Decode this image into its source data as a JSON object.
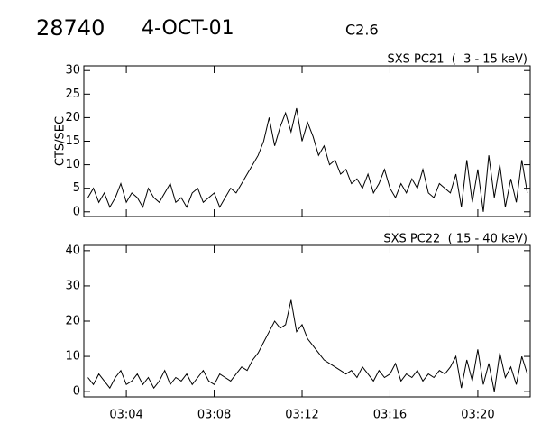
{
  "header": {
    "id": "28740",
    "date": "4-OCT-01",
    "class": "C2.6"
  },
  "chart_data": [
    {
      "type": "line",
      "title": "SXS PC21  (  3 - 15 keV)",
      "y_label": "CTS/SEC",
      "color": "#000000",
      "xlim": [
        "03:02:04",
        "03:22:23"
      ],
      "xticks": [
        "03:04",
        "03:08",
        "03:12",
        "03:16",
        "03:20"
      ],
      "ylim": [
        -1,
        31
      ],
      "yticks": [
        0,
        5,
        10,
        15,
        20,
        25,
        30
      ],
      "x": [
        "03:02:15",
        "03:02:30",
        "03:02:45",
        "03:03:00",
        "03:03:15",
        "03:03:30",
        "03:03:45",
        "03:04:00",
        "03:04:15",
        "03:04:30",
        "03:04:45",
        "03:05:00",
        "03:05:15",
        "03:05:30",
        "03:05:45",
        "03:06:00",
        "03:06:15",
        "03:06:30",
        "03:06:45",
        "03:07:00",
        "03:07:15",
        "03:07:30",
        "03:07:45",
        "03:08:00",
        "03:08:15",
        "03:08:30",
        "03:08:45",
        "03:09:00",
        "03:09:15",
        "03:09:30",
        "03:09:45",
        "03:10:00",
        "03:10:15",
        "03:10:30",
        "03:10:45",
        "03:11:00",
        "03:11:15",
        "03:11:30",
        "03:11:45",
        "03:12:00",
        "03:12:15",
        "03:12:30",
        "03:12:45",
        "03:13:00",
        "03:13:15",
        "03:13:30",
        "03:13:45",
        "03:14:00",
        "03:14:15",
        "03:14:30",
        "03:14:45",
        "03:15:00",
        "03:15:15",
        "03:15:30",
        "03:15:45",
        "03:16:00",
        "03:16:15",
        "03:16:30",
        "03:16:45",
        "03:17:00",
        "03:17:15",
        "03:17:30",
        "03:17:45",
        "03:18:00",
        "03:18:15",
        "03:18:30",
        "03:18:45",
        "03:19:00",
        "03:19:15",
        "03:19:30",
        "03:19:45",
        "03:20:00",
        "03:20:15",
        "03:20:30",
        "03:20:45",
        "03:21:00",
        "03:21:15",
        "03:21:30",
        "03:21:45",
        "03:22:00",
        "03:22:15"
      ],
      "values": [
        3,
        5,
        2,
        4,
        1,
        3,
        6,
        2,
        4,
        3,
        1,
        5,
        3,
        2,
        4,
        6,
        2,
        3,
        1,
        4,
        5,
        2,
        3,
        4,
        1,
        3,
        5,
        4,
        6,
        8,
        10,
        12,
        15,
        20,
        14,
        18,
        21,
        17,
        22,
        15,
        19,
        16,
        12,
        14,
        10,
        11,
        8,
        9,
        6,
        7,
        5,
        8,
        4,
        6,
        9,
        5,
        3,
        6,
        4,
        7,
        5,
        9,
        4,
        3,
        6,
        5,
        4,
        8,
        1,
        11,
        2,
        9,
        0,
        12,
        3,
        10,
        1,
        7,
        2,
        11,
        4
      ]
    },
    {
      "type": "line",
      "title": "SXS PC22  ( 15 - 40 keV)",
      "color": "#000000",
      "xlim": [
        "03:02:04",
        "03:22:23"
      ],
      "xticks": [
        "03:04",
        "03:08",
        "03:12",
        "03:16",
        "03:20"
      ],
      "ylim": [
        -1.5,
        41.5
      ],
      "yticks": [
        0,
        10,
        20,
        30,
        40
      ],
      "x": [
        "03:02:15",
        "03:02:30",
        "03:02:45",
        "03:03:00",
        "03:03:15",
        "03:03:30",
        "03:03:45",
        "03:04:00",
        "03:04:15",
        "03:04:30",
        "03:04:45",
        "03:05:00",
        "03:05:15",
        "03:05:30",
        "03:05:45",
        "03:06:00",
        "03:06:15",
        "03:06:30",
        "03:06:45",
        "03:07:00",
        "03:07:15",
        "03:07:30",
        "03:07:45",
        "03:08:00",
        "03:08:15",
        "03:08:30",
        "03:08:45",
        "03:09:00",
        "03:09:15",
        "03:09:30",
        "03:09:45",
        "03:10:00",
        "03:10:15",
        "03:10:30",
        "03:10:45",
        "03:11:00",
        "03:11:15",
        "03:11:30",
        "03:11:45",
        "03:12:00",
        "03:12:15",
        "03:12:30",
        "03:12:45",
        "03:13:00",
        "03:13:15",
        "03:13:30",
        "03:13:45",
        "03:14:00",
        "03:14:15",
        "03:14:30",
        "03:14:45",
        "03:15:00",
        "03:15:15",
        "03:15:30",
        "03:15:45",
        "03:16:00",
        "03:16:15",
        "03:16:30",
        "03:16:45",
        "03:17:00",
        "03:17:15",
        "03:17:30",
        "03:17:45",
        "03:18:00",
        "03:18:15",
        "03:18:30",
        "03:18:45",
        "03:19:00",
        "03:19:15",
        "03:19:30",
        "03:19:45",
        "03:20:00",
        "03:20:15",
        "03:20:30",
        "03:20:45",
        "03:21:00",
        "03:21:15",
        "03:21:30",
        "03:21:45",
        "03:22:00",
        "03:22:15"
      ],
      "values": [
        4,
        2,
        5,
        3,
        1,
        4,
        6,
        2,
        3,
        5,
        2,
        4,
        1,
        3,
        6,
        2,
        4,
        3,
        5,
        2,
        4,
        6,
        3,
        2,
        5,
        4,
        3,
        5,
        7,
        6,
        9,
        11,
        14,
        17,
        20,
        18,
        19,
        26,
        17,
        19,
        15,
        13,
        11,
        9,
        8,
        7,
        6,
        5,
        6,
        4,
        7,
        5,
        3,
        6,
        4,
        5,
        8,
        3,
        5,
        4,
        6,
        3,
        5,
        4,
        6,
        5,
        7,
        10,
        1,
        9,
        3,
        12,
        2,
        8,
        0,
        11,
        4,
        7,
        2,
        10,
        5
      ]
    }
  ]
}
